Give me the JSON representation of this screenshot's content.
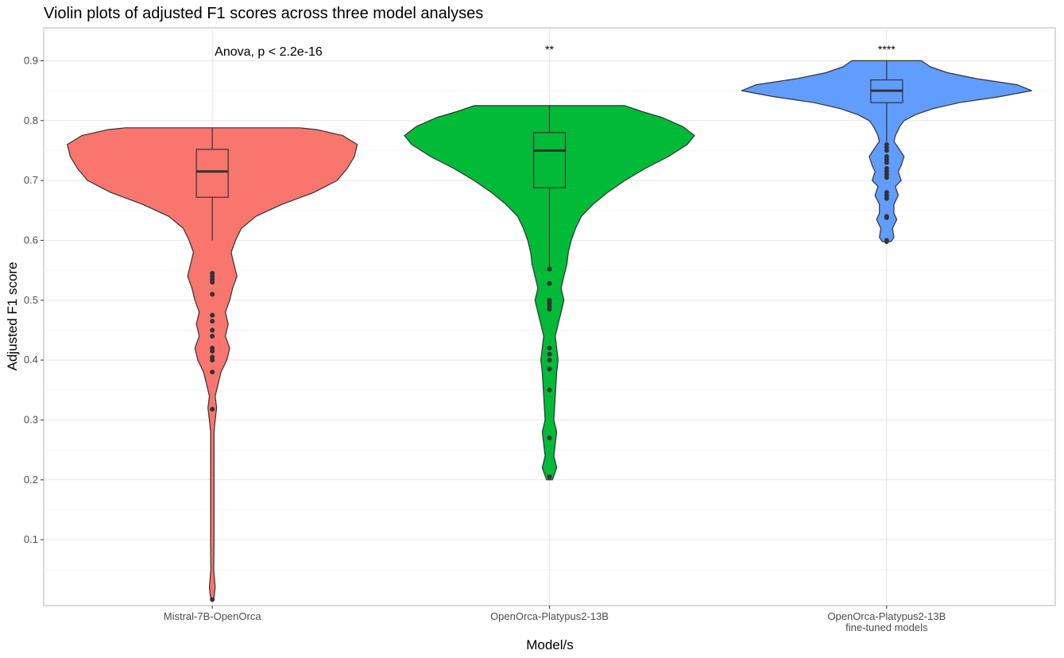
{
  "chart_data": {
    "type": "violin",
    "title": "Violin plots of adjusted F1 scores across three model analyses",
    "xlabel": "Model/s",
    "ylabel": "Adjusted F1 score",
    "ylim": [
      -0.01,
      0.955
    ],
    "yticks": [
      0.1,
      0.2,
      0.3,
      0.4,
      0.5,
      0.6,
      0.7,
      0.8,
      0.9
    ],
    "grid": true,
    "test_annotation": "Anova, p < 2.2e-16",
    "groups": [
      {
        "label": "Mistral-7B-OpenOrca",
        "label_lines": [
          "Mistral-7B-OpenOrca"
        ],
        "color": "#F8766D",
        "significance": "",
        "box": {
          "q1": 0.672,
          "median": 0.715,
          "q3": 0.752,
          "whisker_low": 0.6,
          "whisker_high": 0.788
        },
        "violin_range": [
          0.0,
          0.788
        ],
        "density_profile": [
          [
            0.0,
            0.01
          ],
          [
            0.02,
            0.02
          ],
          [
            0.05,
            0.01
          ],
          [
            0.1,
            0.012
          ],
          [
            0.2,
            0.012
          ],
          [
            0.28,
            0.012
          ],
          [
            0.3,
            0.02
          ],
          [
            0.32,
            0.03
          ],
          [
            0.34,
            0.02
          ],
          [
            0.36,
            0.04
          ],
          [
            0.38,
            0.06
          ],
          [
            0.4,
            0.1
          ],
          [
            0.42,
            0.12
          ],
          [
            0.44,
            0.09
          ],
          [
            0.46,
            0.11
          ],
          [
            0.48,
            0.09
          ],
          [
            0.5,
            0.12
          ],
          [
            0.52,
            0.14
          ],
          [
            0.54,
            0.17
          ],
          [
            0.56,
            0.15
          ],
          [
            0.58,
            0.13
          ],
          [
            0.6,
            0.16
          ],
          [
            0.62,
            0.2
          ],
          [
            0.64,
            0.3
          ],
          [
            0.66,
            0.48
          ],
          [
            0.68,
            0.7
          ],
          [
            0.7,
            0.86
          ],
          [
            0.72,
            0.93
          ],
          [
            0.74,
            0.98
          ],
          [
            0.76,
            1.0
          ],
          [
            0.775,
            0.9
          ],
          [
            0.785,
            0.72
          ],
          [
            0.788,
            0.6
          ]
        ],
        "outliers": [
          0.545,
          0.54,
          0.535,
          0.53,
          0.51,
          0.475,
          0.465,
          0.45,
          0.44,
          0.42,
          0.415,
          0.405,
          0.4,
          0.38,
          0.318,
          0.0
        ]
      },
      {
        "label": "OpenOrca-Platypus2-13B",
        "label_lines": [
          "OpenOrca-Platypus2-13B"
        ],
        "color": "#00BA38",
        "significance": "**",
        "box": {
          "q1": 0.688,
          "median": 0.75,
          "q3": 0.78,
          "whisker_low": 0.555,
          "whisker_high": 0.825
        },
        "violin_range": [
          0.2,
          0.825
        ],
        "density_profile": [
          [
            0.2,
            0.02
          ],
          [
            0.22,
            0.05
          ],
          [
            0.24,
            0.03
          ],
          [
            0.26,
            0.04
          ],
          [
            0.28,
            0.05
          ],
          [
            0.3,
            0.03
          ],
          [
            0.34,
            0.04
          ],
          [
            0.38,
            0.05
          ],
          [
            0.4,
            0.06
          ],
          [
            0.42,
            0.05
          ],
          [
            0.44,
            0.04
          ],
          [
            0.46,
            0.06
          ],
          [
            0.48,
            0.08
          ],
          [
            0.5,
            0.1
          ],
          [
            0.52,
            0.08
          ],
          [
            0.54,
            0.1
          ],
          [
            0.56,
            0.12
          ],
          [
            0.58,
            0.13
          ],
          [
            0.6,
            0.15
          ],
          [
            0.62,
            0.18
          ],
          [
            0.64,
            0.22
          ],
          [
            0.66,
            0.3
          ],
          [
            0.68,
            0.4
          ],
          [
            0.7,
            0.52
          ],
          [
            0.72,
            0.66
          ],
          [
            0.74,
            0.82
          ],
          [
            0.76,
            0.95
          ],
          [
            0.775,
            1.0
          ],
          [
            0.79,
            0.92
          ],
          [
            0.805,
            0.78
          ],
          [
            0.815,
            0.64
          ],
          [
            0.825,
            0.52
          ]
        ],
        "outliers": [
          0.552,
          0.528,
          0.5,
          0.495,
          0.49,
          0.485,
          0.42,
          0.41,
          0.4,
          0.385,
          0.35,
          0.27,
          0.205
        ]
      },
      {
        "label": "OpenOrca-Platypus2-13B fine-tuned models",
        "label_lines": [
          "OpenOrca-Platypus2-13B",
          "fine-tuned models"
        ],
        "color": "#619CFF",
        "significance": "****",
        "box": {
          "q1": 0.83,
          "median": 0.85,
          "q3": 0.868,
          "whisker_low": 0.765,
          "whisker_high": 0.9
        },
        "violin_range": [
          0.598,
          0.9
        ],
        "density_profile": [
          [
            0.598,
            0.03
          ],
          [
            0.605,
            0.05
          ],
          [
            0.62,
            0.04
          ],
          [
            0.635,
            0.07
          ],
          [
            0.645,
            0.05
          ],
          [
            0.66,
            0.05
          ],
          [
            0.675,
            0.08
          ],
          [
            0.69,
            0.06
          ],
          [
            0.7,
            0.1
          ],
          [
            0.715,
            0.08
          ],
          [
            0.725,
            0.1
          ],
          [
            0.74,
            0.12
          ],
          [
            0.755,
            0.08
          ],
          [
            0.765,
            0.05
          ],
          [
            0.775,
            0.06
          ],
          [
            0.79,
            0.09
          ],
          [
            0.8,
            0.12
          ],
          [
            0.81,
            0.2
          ],
          [
            0.82,
            0.32
          ],
          [
            0.83,
            0.5
          ],
          [
            0.84,
            0.78
          ],
          [
            0.85,
            1.0
          ],
          [
            0.86,
            0.9
          ],
          [
            0.87,
            0.62
          ],
          [
            0.88,
            0.42
          ],
          [
            0.89,
            0.3
          ],
          [
            0.9,
            0.24
          ]
        ],
        "outliers": [
          0.76,
          0.755,
          0.75,
          0.74,
          0.735,
          0.73,
          0.72,
          0.715,
          0.71,
          0.705,
          0.68,
          0.675,
          0.67,
          0.64,
          0.638,
          0.6,
          0.598
        ]
      }
    ]
  }
}
